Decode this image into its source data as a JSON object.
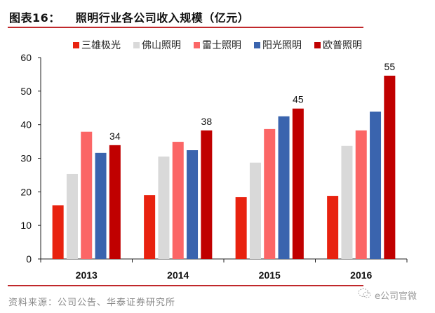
{
  "header": {
    "figure_label": "图表16：",
    "title": "照明行业各公司收入规模（亿元）"
  },
  "footer": {
    "source": "资料来源：公司公告、华泰证券研究所",
    "watermark": "e公司官微",
    "watermark_icon": "wechat-icon"
  },
  "colors": {
    "rule": "#c0282b",
    "三雄极光": "#e8220f",
    "佛山照明": "#d9d9d9",
    "雷士照明": "#fb6666",
    "阳光照明": "#3a64ae",
    "欧普照明": "#c00000"
  },
  "chart_data": {
    "type": "bar",
    "title": "照明行业各公司收入规模（亿元）",
    "xlabel": "",
    "ylabel": "",
    "categories": [
      "2013",
      "2014",
      "2015",
      "2016"
    ],
    "ylim": [
      0,
      60
    ],
    "yticks": [
      0,
      10,
      20,
      30,
      40,
      50,
      60
    ],
    "grid": false,
    "legend_position": "top",
    "series": [
      {
        "name": "三雄极光",
        "color": "#e8220f",
        "values": [
          16,
          19,
          18.4,
          18.8
        ]
      },
      {
        "name": "佛山照明",
        "color": "#d9d9d9",
        "values": [
          25.3,
          30.5,
          28.7,
          33.7
        ]
      },
      {
        "name": "雷士照明",
        "color": "#fb6666",
        "values": [
          37.9,
          34.9,
          38.7,
          38.3
        ]
      },
      {
        "name": "阳光照明",
        "color": "#3a64ae",
        "values": [
          31.6,
          32.4,
          42.5,
          43.9
        ]
      },
      {
        "name": "欧普照明",
        "color": "#c00000",
        "values": [
          33.9,
          38.3,
          44.8,
          54.6
        ],
        "data_labels": [
          "34",
          "38",
          "45",
          "55"
        ]
      }
    ]
  }
}
